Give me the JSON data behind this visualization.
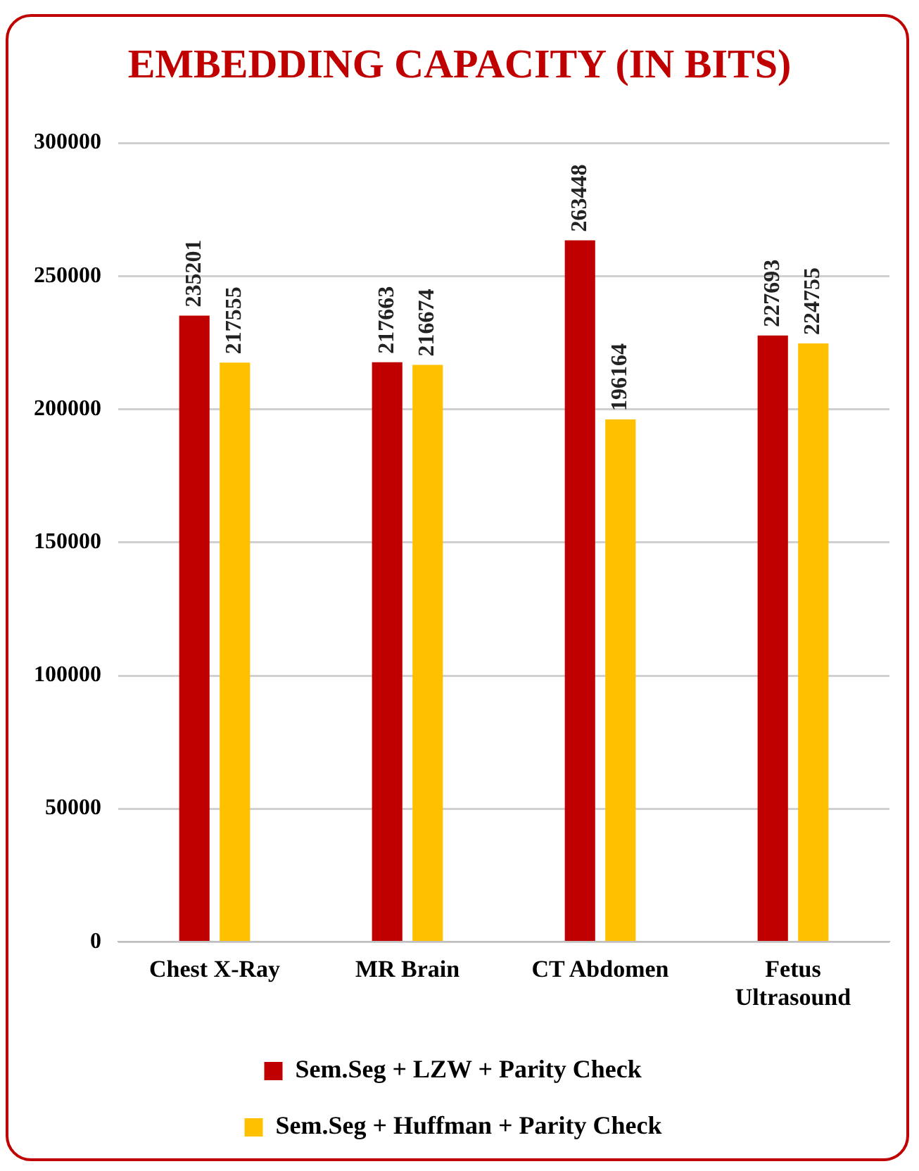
{
  "chart_data": {
    "type": "bar",
    "title": "EMBEDDING CAPACITY (IN BITS)",
    "categories": [
      "Chest X-Ray",
      "MR Brain",
      "CT Abdomen",
      "Fetus Ultrasound"
    ],
    "series": [
      {
        "name": "Sem.Seg + LZW + Parity Check",
        "color": "#c00000",
        "values": [
          235201,
          217663,
          263448,
          227693
        ]
      },
      {
        "name": "Sem.Seg + Huffman + Parity Check",
        "color": "#ffc000",
        "values": [
          217555,
          216674,
          196164,
          224755
        ]
      }
    ],
    "ylim": [
      0,
      300000
    ],
    "yticks": [
      0,
      50000,
      100000,
      150000,
      200000,
      250000,
      300000
    ],
    "grid": "y",
    "legend": "bottom",
    "data_labels": true
  }
}
